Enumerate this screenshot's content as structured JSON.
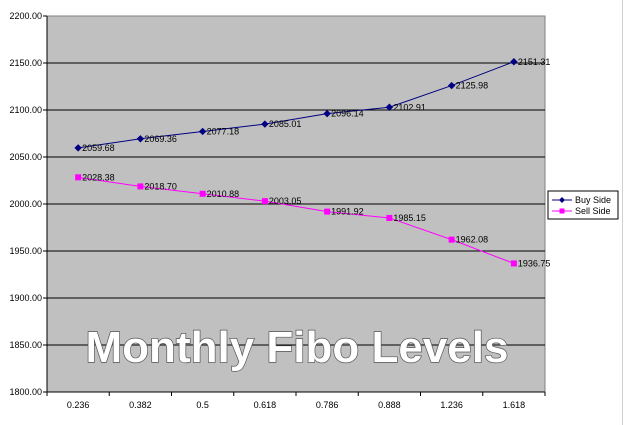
{
  "chart_data": {
    "type": "line",
    "title": "Monthly Fibo Levels",
    "xlabel": "",
    "ylabel": "",
    "categories": [
      "0.236",
      "0.382",
      "0.5",
      "0.618",
      "0.786",
      "0.888",
      "1.236",
      "1.618"
    ],
    "ylim": [
      1800,
      2200
    ],
    "yticks": [
      "1800.00",
      "1850.00",
      "1900.00",
      "1950.00",
      "2000.00",
      "2050.00",
      "2100.00",
      "2150.00",
      "2200.00"
    ],
    "grid": true,
    "legend_position": "right",
    "plot_background": "#c0c0c0",
    "series": [
      {
        "name": "Buy Side",
        "color": "#000080",
        "marker": "diamond",
        "values": [
          2059.68,
          2069.36,
          2077.18,
          2085.01,
          2096.14,
          2102.91,
          2125.98,
          2151.31
        ],
        "labels": [
          "2059.68",
          "2069.36",
          "2077.18",
          "2085.01",
          "2096.14",
          "2102.91",
          "2125.98",
          "2151.31"
        ]
      },
      {
        "name": "Sell Side",
        "color": "#ff00ff",
        "marker": "square",
        "values": [
          2028.38,
          2018.7,
          2010.88,
          2003.05,
          1991.92,
          1985.15,
          1962.08,
          1936.75
        ],
        "labels": [
          "2028.38",
          "2018.70",
          "2010.88",
          "2003.05",
          "1991.92",
          "1985.15",
          "1962.08",
          "1936.75"
        ]
      }
    ]
  }
}
